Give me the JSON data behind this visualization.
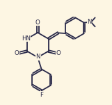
{
  "bg_color": "#fdf6e3",
  "line_color": "#2a2a4a",
  "line_width": 1.3,
  "font_size": 6.2,
  "figsize": [
    1.61,
    1.51
  ],
  "dpi": 100,
  "xlim": [
    -0.5,
    9.5
  ],
  "ylim": [
    1.0,
    9.0
  ]
}
